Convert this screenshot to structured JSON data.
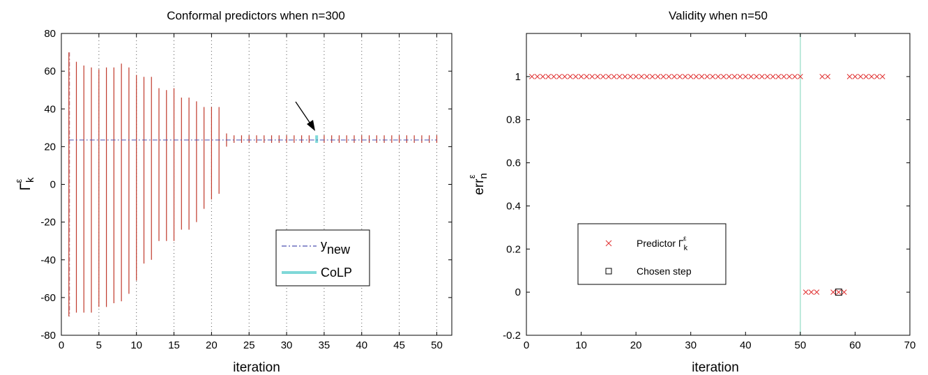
{
  "chart_data": [
    {
      "type": "interval",
      "title": "Conformal predictors when n=300",
      "xlabel": "iteration",
      "ylabel": "Γ",
      "ylabel_sup": "ε",
      "ylabel_sub": "k",
      "xlim": [
        0,
        52
      ],
      "ylim": [
        -80,
        80
      ],
      "xticks": [
        0,
        5,
        10,
        15,
        20,
        25,
        30,
        35,
        40,
        45,
        50
      ],
      "yticks": [
        80,
        60,
        40,
        20,
        0,
        -20,
        -40,
        -60,
        -80
      ],
      "grid": "x-dotted",
      "legend_position": "lower-right",
      "y_new": 23.5,
      "colp_iteration": 34,
      "annotation": "arrow pointing at CoLP interval",
      "legend": [
        {
          "label": "y",
          "sub": "new",
          "style": "dash-dot",
          "color": "#4a4fb0"
        },
        {
          "label": "CoLP",
          "style": "solid-thick",
          "color": "#7fd8d8"
        }
      ],
      "intervals": [
        {
          "x": 1,
          "low": -70,
          "high": 70
        },
        {
          "x": 2,
          "low": -68,
          "high": 65
        },
        {
          "x": 3,
          "low": -68,
          "high": 63
        },
        {
          "x": 4,
          "low": -68,
          "high": 62
        },
        {
          "x": 5,
          "low": -65,
          "high": 61
        },
        {
          "x": 6,
          "low": -65,
          "high": 62
        },
        {
          "x": 7,
          "low": -63,
          "high": 62
        },
        {
          "x": 8,
          "low": -62,
          "high": 64
        },
        {
          "x": 9,
          "low": -58,
          "high": 62
        },
        {
          "x": 10,
          "low": -51,
          "high": 58
        },
        {
          "x": 11,
          "low": -42,
          "high": 57
        },
        {
          "x": 12,
          "low": -40,
          "high": 57
        },
        {
          "x": 13,
          "low": -30,
          "high": 51
        },
        {
          "x": 14,
          "low": -30,
          "high": 50
        },
        {
          "x": 15,
          "low": -30,
          "high": 51
        },
        {
          "x": 16,
          "low": -24,
          "high": 46
        },
        {
          "x": 17,
          "low": -24,
          "high": 46
        },
        {
          "x": 18,
          "low": -20,
          "high": 44
        },
        {
          "x": 19,
          "low": -13,
          "high": 41
        },
        {
          "x": 20,
          "low": -8,
          "high": 41
        },
        {
          "x": 21,
          "low": -5,
          "high": 41
        },
        {
          "x": 22,
          "low": 20,
          "high": 27
        },
        {
          "x": 23,
          "low": 22,
          "high": 26
        },
        {
          "x": 24,
          "low": 22,
          "high": 26
        },
        {
          "x": 25,
          "low": 22,
          "high": 26
        },
        {
          "x": 26,
          "low": 22,
          "high": 26
        },
        {
          "x": 27,
          "low": 22,
          "high": 26
        },
        {
          "x": 28,
          "low": 22,
          "high": 26
        },
        {
          "x": 29,
          "low": 22,
          "high": 26
        },
        {
          "x": 30,
          "low": 22,
          "high": 26
        },
        {
          "x": 31,
          "low": 22,
          "high": 26
        },
        {
          "x": 32,
          "low": 22,
          "high": 26
        },
        {
          "x": 33,
          "low": 22,
          "high": 26
        },
        {
          "x": 34,
          "low": 22,
          "high": 26
        },
        {
          "x": 35,
          "low": 22,
          "high": 26
        },
        {
          "x": 36,
          "low": 22,
          "high": 26
        },
        {
          "x": 37,
          "low": 22,
          "high": 26
        },
        {
          "x": 38,
          "low": 22,
          "high": 26
        },
        {
          "x": 39,
          "low": 22,
          "high": 26
        },
        {
          "x": 40,
          "low": 22,
          "high": 26
        },
        {
          "x": 41,
          "low": 22,
          "high": 26
        },
        {
          "x": 42,
          "low": 22,
          "high": 26
        },
        {
          "x": 43,
          "low": 22,
          "high": 26
        },
        {
          "x": 44,
          "low": 22,
          "high": 26
        },
        {
          "x": 45,
          "low": 22,
          "high": 26
        },
        {
          "x": 46,
          "low": 22,
          "high": 26
        },
        {
          "x": 47,
          "low": 22,
          "high": 26
        },
        {
          "x": 48,
          "low": 22,
          "high": 26
        },
        {
          "x": 49,
          "low": 22,
          "high": 26
        },
        {
          "x": 50,
          "low": 22,
          "high": 26
        }
      ]
    },
    {
      "type": "scatter",
      "title": "Validity when n=50",
      "xlabel": "iteration",
      "ylabel": "err",
      "ylabel_sup": "ε",
      "ylabel_sub": "n",
      "xlim": [
        0,
        70
      ],
      "ylim": [
        -0.2,
        1.2
      ],
      "xticks": [
        0,
        10,
        20,
        30,
        40,
        50,
        60,
        70
      ],
      "yticks": [
        1,
        0.8,
        0.6,
        0.4,
        0.2,
        0,
        -0.2
      ],
      "grid": "off",
      "legend_position": "lower-left",
      "vertical_line_x": 50,
      "legend": [
        {
          "label": "Predictor Γ",
          "sup": "ε",
          "sub": "k",
          "marker": "x",
          "color": "#e03030"
        },
        {
          "label": "Chosen step",
          "marker": "square",
          "color": "#000000"
        }
      ],
      "series": [
        {
          "marker": "x",
          "color": "#e03030",
          "points": [
            [
              1,
              1
            ],
            [
              2,
              1
            ],
            [
              3,
              1
            ],
            [
              4,
              1
            ],
            [
              5,
              1
            ],
            [
              6,
              1
            ],
            [
              7,
              1
            ],
            [
              8,
              1
            ],
            [
              9,
              1
            ],
            [
              10,
              1
            ],
            [
              11,
              1
            ],
            [
              12,
              1
            ],
            [
              13,
              1
            ],
            [
              14,
              1
            ],
            [
              15,
              1
            ],
            [
              16,
              1
            ],
            [
              17,
              1
            ],
            [
              18,
              1
            ],
            [
              19,
              1
            ],
            [
              20,
              1
            ],
            [
              21,
              1
            ],
            [
              22,
              1
            ],
            [
              23,
              1
            ],
            [
              24,
              1
            ],
            [
              25,
              1
            ],
            [
              26,
              1
            ],
            [
              27,
              1
            ],
            [
              28,
              1
            ],
            [
              29,
              1
            ],
            [
              30,
              1
            ],
            [
              31,
              1
            ],
            [
              32,
              1
            ],
            [
              33,
              1
            ],
            [
              34,
              1
            ],
            [
              35,
              1
            ],
            [
              36,
              1
            ],
            [
              37,
              1
            ],
            [
              38,
              1
            ],
            [
              39,
              1
            ],
            [
              40,
              1
            ],
            [
              41,
              1
            ],
            [
              42,
              1
            ],
            [
              43,
              1
            ],
            [
              44,
              1
            ],
            [
              45,
              1
            ],
            [
              46,
              1
            ],
            [
              47,
              1
            ],
            [
              48,
              1
            ],
            [
              49,
              1
            ],
            [
              50,
              1
            ],
            [
              51,
              0
            ],
            [
              52,
              0
            ],
            [
              53,
              0
            ],
            [
              54,
              1
            ],
            [
              55,
              1
            ],
            [
              56,
              0
            ],
            [
              57,
              0
            ],
            [
              58,
              0
            ],
            [
              59,
              1
            ],
            [
              60,
              1
            ],
            [
              61,
              1
            ],
            [
              62,
              1
            ],
            [
              63,
              1
            ],
            [
              64,
              1
            ],
            [
              65,
              1
            ]
          ]
        },
        {
          "marker": "square",
          "color": "#000000",
          "points": [
            [
              57,
              0
            ]
          ]
        }
      ]
    }
  ]
}
